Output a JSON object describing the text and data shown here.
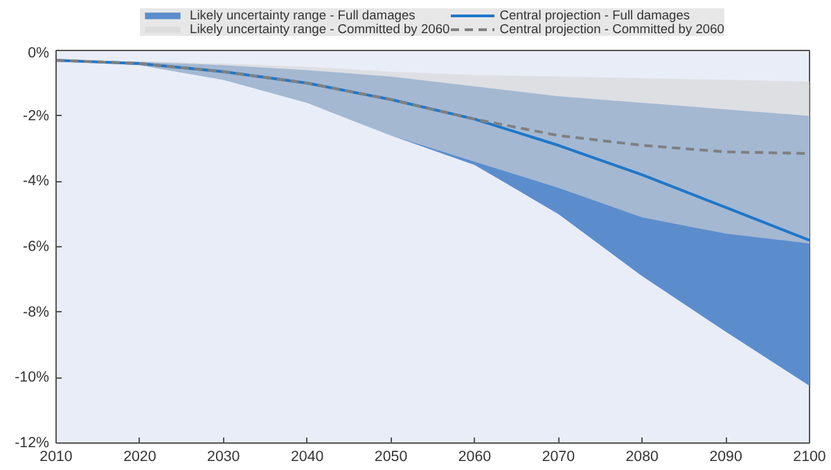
{
  "chart_data": {
    "type": "line",
    "x": [
      2010,
      2020,
      2030,
      2040,
      2050,
      2060,
      2070,
      2080,
      2090,
      2100
    ],
    "series": [
      {
        "name": "Likely uncertainty range - Full damages",
        "type": "area",
        "color": "#5b8dcd",
        "values": [
          null,
          null,
          null,
          null,
          null,
          null,
          null,
          null,
          null,
          null
        ],
        "upper": [
          -0.3,
          -0.35,
          -0.45,
          -0.6,
          -0.8,
          -1.1,
          -1.4,
          -1.6,
          -1.8,
          -2.0
        ],
        "lower": [
          -0.3,
          -0.45,
          -0.9,
          -1.6,
          -2.6,
          -3.5,
          -5.0,
          -6.9,
          -8.6,
          -10.25
        ]
      },
      {
        "name": "Likely uncertainty range - Committed by 2060",
        "type": "area",
        "color": "#d6d6d6",
        "values": [
          null,
          null,
          null,
          null,
          null,
          null,
          null,
          null,
          null,
          null
        ],
        "upper": [
          -0.3,
          -0.33,
          -0.4,
          -0.5,
          -0.65,
          -0.75,
          -0.8,
          -0.85,
          -0.9,
          -0.95
        ],
        "lower": [
          -0.3,
          -0.45,
          -0.9,
          -1.6,
          -2.6,
          -3.4,
          -4.2,
          -5.1,
          -5.6,
          -5.9
        ]
      },
      {
        "name": "Central projection - Full damages",
        "color": "#1f77c9",
        "line_style": "solid",
        "values": [
          -0.3,
          -0.4,
          -0.65,
          -1.0,
          -1.5,
          -2.1,
          -2.9,
          -3.8,
          -4.8,
          -5.8
        ]
      },
      {
        "name": "Central projection - Committed by 2060",
        "color": "#808080",
        "line_style": "dashed",
        "values": [
          -0.3,
          -0.4,
          -0.65,
          -1.0,
          -1.5,
          -2.1,
          -2.6,
          -2.9,
          -3.1,
          -3.15
        ]
      }
    ],
    "xlim": [
      2010,
      2100
    ],
    "xticks": [
      2010,
      2020,
      2030,
      2040,
      2050,
      2060,
      2070,
      2080,
      2090,
      2100
    ],
    "ylim": [
      -12,
      0
    ],
    "yticks": [
      {
        "value": 0,
        "label": "0%"
      },
      {
        "value": -2,
        "label": "-2%"
      },
      {
        "value": -4,
        "label": "-4%"
      },
      {
        "value": -6,
        "label": "-6%"
      },
      {
        "value": -8,
        "label": "-8%"
      },
      {
        "value": -10,
        "label": "-10%"
      },
      {
        "value": -12,
        "label": "-12%"
      }
    ],
    "grid": false,
    "legend": "top",
    "marker": "none"
  }
}
